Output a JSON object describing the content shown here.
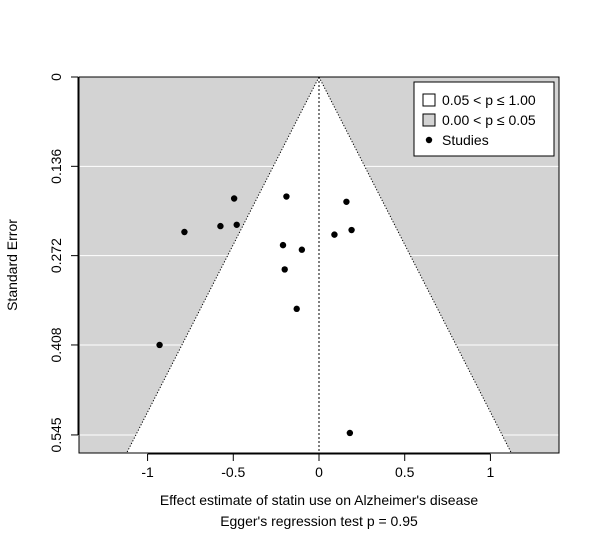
{
  "chart_data": {
    "type": "scatter",
    "subtype": "contour-enhanced funnel plot",
    "xlabel": "Effect estimate of statin use on Alzheimer's disease",
    "ylabel": "Standard Error",
    "subtitle": "Egger's regression test p = 0.95",
    "xlim": [
      -1.4,
      1.4
    ],
    "ylim": [
      0.5725,
      0.0
    ],
    "y_reversed": true,
    "x_ticks": [
      -1,
      -0.5,
      0,
      0.5,
      1
    ],
    "x_tick_labels": [
      "-1",
      "-0.5",
      "0",
      "0.5",
      "1"
    ],
    "y_ticks": [
      0,
      0.136,
      0.272,
      0.408,
      0.545
    ],
    "y_tick_labels": [
      "0",
      "0.136",
      "0.272",
      "0.408",
      "0.545"
    ],
    "grid": "horizontal lines at y ticks",
    "center_line_x": 0,
    "funnel_apex": [
      0,
      0
    ],
    "funnel_base_se": 0.5725,
    "funnel_z": 1.96,
    "legend_position": "top-right",
    "legend": [
      {
        "label": "0.05 < p ≤ 1.00",
        "marker": "square",
        "fill": "#ffffff"
      },
      {
        "label": "0.00 < p ≤ 0.05",
        "marker": "square",
        "fill": "#d3d3d3"
      },
      {
        "label": "Studies",
        "marker": "point",
        "fill": "#000000"
      }
    ],
    "colors": {
      "significant_region": "#d3d3d3",
      "nonsignificant_region": "#ffffff",
      "gridline": "#ffffff",
      "points": "#000000"
    },
    "points": [
      {
        "x": -0.93,
        "y": 0.408
      },
      {
        "x": -0.785,
        "y": 0.236
      },
      {
        "x": -0.575,
        "y": 0.227
      },
      {
        "x": -0.495,
        "y": 0.185
      },
      {
        "x": -0.48,
        "y": 0.225
      },
      {
        "x": -0.19,
        "y": 0.182
      },
      {
        "x": -0.21,
        "y": 0.256
      },
      {
        "x": -0.2,
        "y": 0.293
      },
      {
        "x": -0.1,
        "y": 0.263
      },
      {
        "x": -0.13,
        "y": 0.353
      },
      {
        "x": 0.09,
        "y": 0.24
      },
      {
        "x": 0.16,
        "y": 0.19
      },
      {
        "x": 0.19,
        "y": 0.233
      },
      {
        "x": 0.18,
        "y": 0.542
      }
    ]
  }
}
